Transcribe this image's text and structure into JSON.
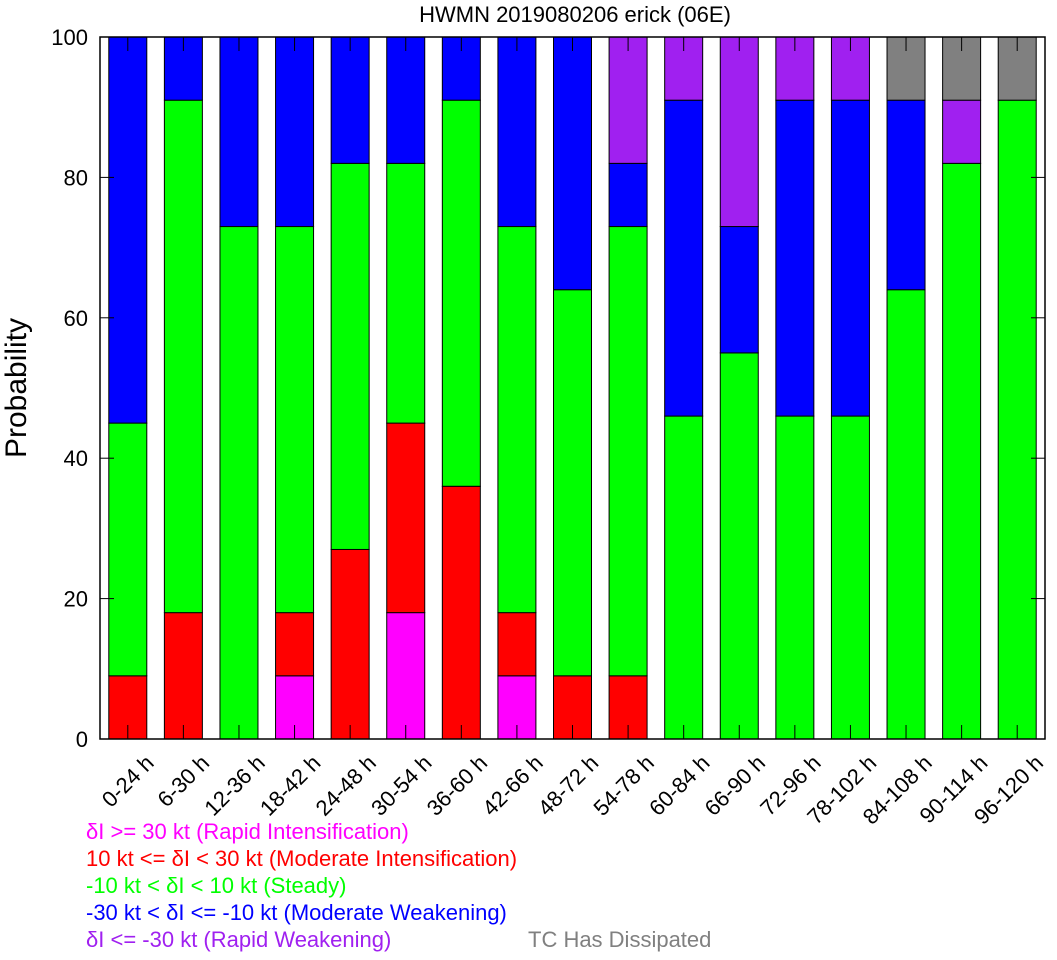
{
  "chart_data": {
    "type": "bar",
    "stacked": true,
    "title": "HWMN 2019080206 erick (06E)",
    "xlabel": "",
    "ylabel": "Probability",
    "ylim": [
      0,
      100
    ],
    "yticks": [
      0,
      20,
      40,
      60,
      80,
      100
    ],
    "categories": [
      "0-24 h",
      "6-30 h",
      "12-36 h",
      "18-42 h",
      "24-48 h",
      "30-54 h",
      "36-60 h",
      "42-66 h",
      "48-72 h",
      "54-78 h",
      "60-84 h",
      "66-90 h",
      "72-96 h",
      "78-102 h",
      "84-108 h",
      "90-114 h",
      "96-120 h"
    ],
    "series": [
      {
        "name": "δI >= 30 kt (Rapid Intensification)",
        "color": "#ff00ff",
        "values": [
          0,
          0,
          0,
          9,
          0,
          18,
          0,
          9,
          0,
          0,
          0,
          0,
          0,
          0,
          0,
          0,
          0
        ]
      },
      {
        "name": "10 kt <= δI < 30 kt (Moderate Intensification)",
        "color": "#ff0000",
        "values": [
          9,
          18,
          0,
          9,
          27,
          27,
          36,
          9,
          9,
          9,
          0,
          0,
          0,
          0,
          0,
          0,
          0
        ]
      },
      {
        "name": "-10 kt < δI < 10 kt (Steady)",
        "color": "#00ff00",
        "values": [
          36,
          73,
          73,
          55,
          55,
          37,
          55,
          55,
          55,
          64,
          46,
          55,
          46,
          46,
          64,
          82,
          91
        ]
      },
      {
        "name": "-30 kt < δI <= -10 kt (Moderate Weakening)",
        "color": "#0000ff",
        "values": [
          55,
          9,
          27,
          27,
          18,
          18,
          9,
          27,
          36,
          9,
          45,
          18,
          45,
          45,
          27,
          0,
          0
        ]
      },
      {
        "name": "δI <= -30 kt (Rapid Weakening)",
        "color": "#a020f0",
        "values": [
          0,
          0,
          0,
          0,
          0,
          0,
          0,
          0,
          0,
          18,
          9,
          27,
          9,
          9,
          0,
          9,
          0
        ]
      },
      {
        "name": "TC Has Dissipated",
        "color": "#808080",
        "values": [
          0,
          0,
          0,
          0,
          0,
          0,
          0,
          0,
          0,
          0,
          0,
          0,
          0,
          0,
          9,
          9,
          9
        ]
      }
    ],
    "grid": false,
    "legend_position": "below"
  }
}
